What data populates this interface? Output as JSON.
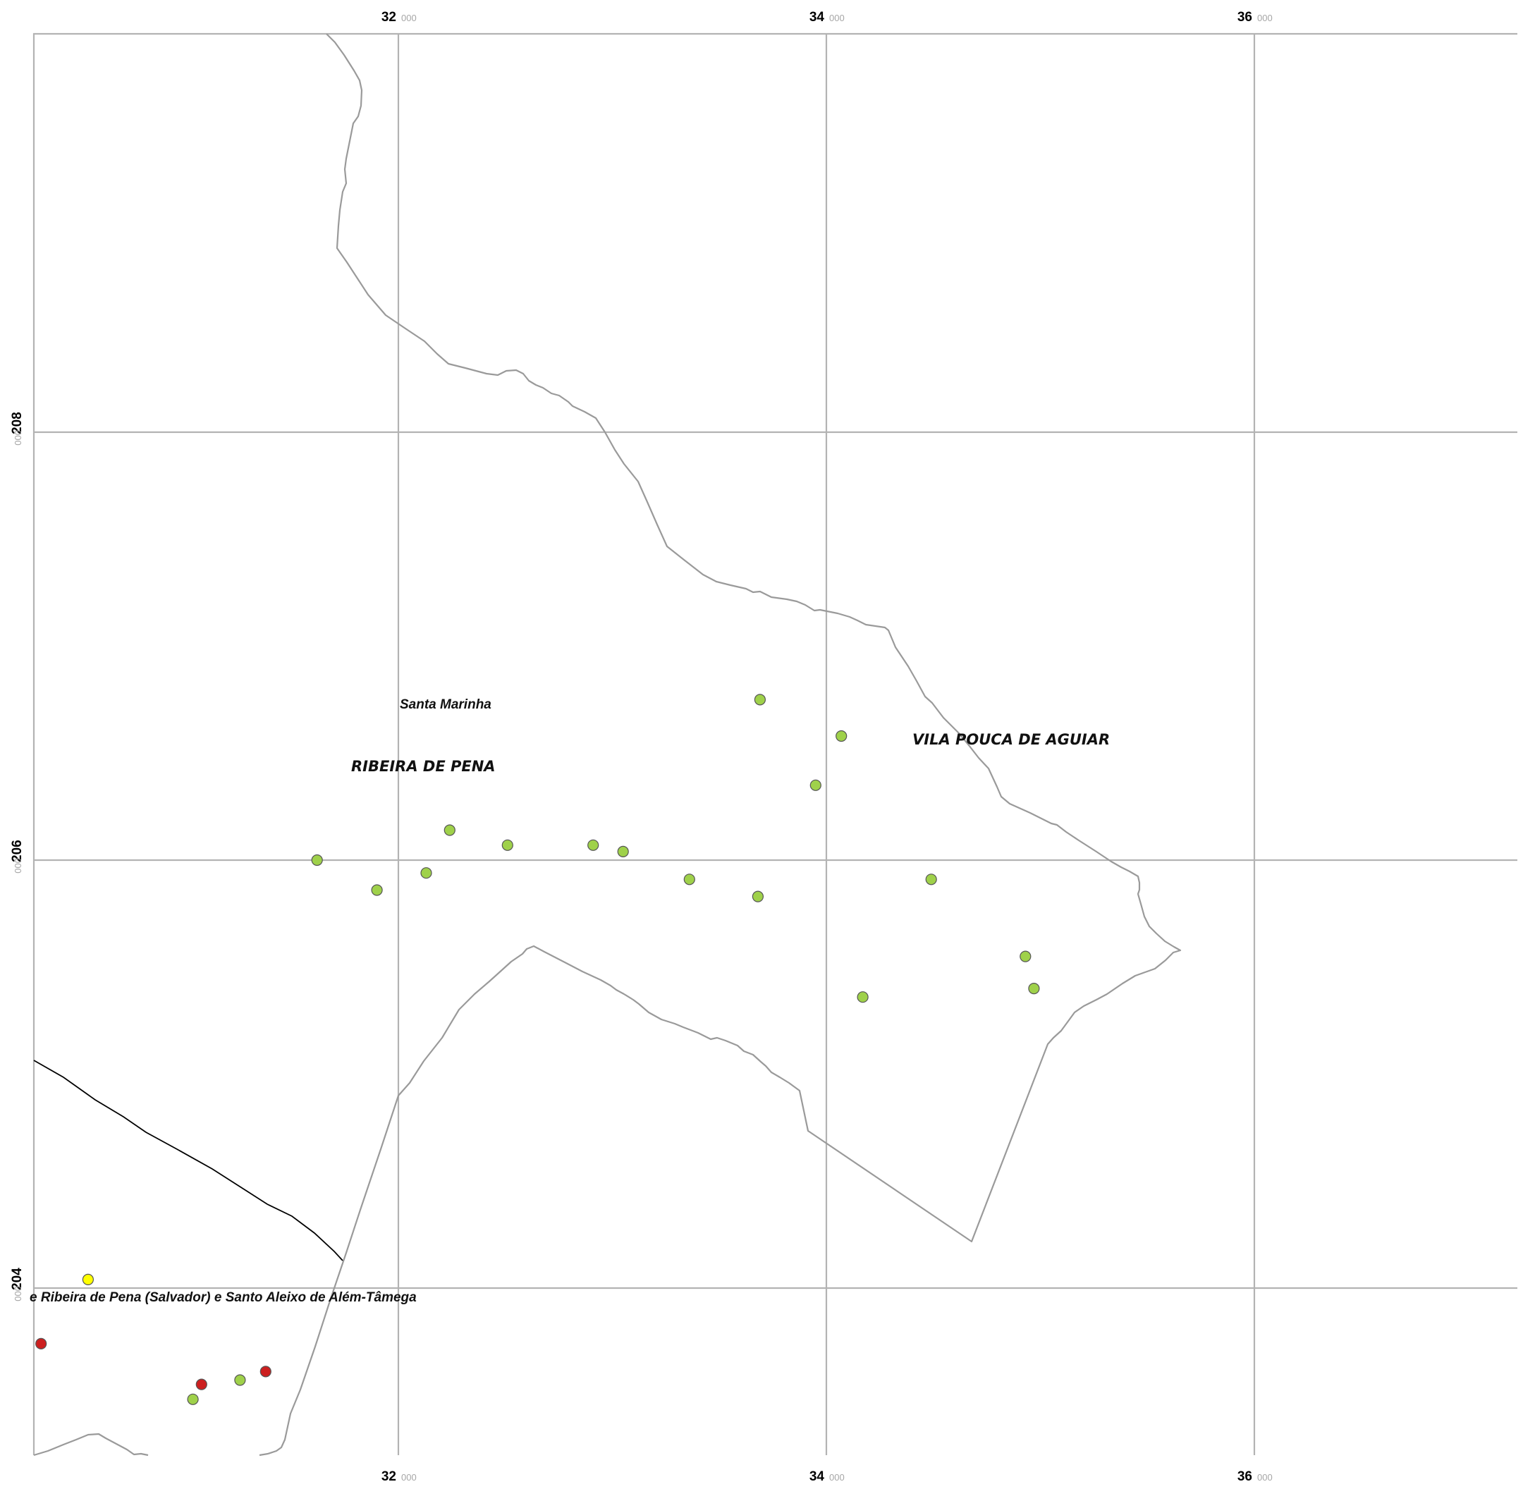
{
  "axes": {
    "x_ticks": [
      {
        "major": "32",
        "minor": "000"
      },
      {
        "major": "34",
        "minor": "000"
      },
      {
        "major": "36",
        "minor": "000"
      }
    ],
    "y_ticks": [
      {
        "major": "208",
        "minor": "000"
      },
      {
        "major": "206",
        "minor": "000"
      },
      {
        "major": "204",
        "minor": "000"
      }
    ]
  },
  "labels": {
    "santa_marinha": "Santa Marinha",
    "ribeira_de_pena": "RIBEIRA DE PENA",
    "vila_pouca_de_aguiar": "VILA POUCA DE AGUIAR",
    "union_parish": "e Ribeira de Pena (Salvador) e Santo Aleixo de Além-Tâmega"
  },
  "colors": {
    "green_point": "#9fd14a",
    "red_point": "#cc1f1f",
    "yellow_point": "#ffff00",
    "grid": "#b3b3b3",
    "border": "#9a9a9a"
  },
  "points": [
    {
      "x": 31.62,
      "y": 206.0,
      "status": "green"
    },
    {
      "x": 31.9,
      "y": 205.86,
      "status": "green"
    },
    {
      "x": 32.13,
      "y": 205.94,
      "status": "green"
    },
    {
      "x": 32.24,
      "y": 206.14,
      "status": "green"
    },
    {
      "x": 32.51,
      "y": 206.07,
      "status": "green"
    },
    {
      "x": 32.91,
      "y": 206.07,
      "status": "green"
    },
    {
      "x": 33.05,
      "y": 206.04,
      "status": "green"
    },
    {
      "x": 33.36,
      "y": 205.91,
      "status": "green"
    },
    {
      "x": 33.68,
      "y": 205.83,
      "status": "green"
    },
    {
      "x": 33.69,
      "y": 206.75,
      "status": "green"
    },
    {
      "x": 34.07,
      "y": 206.58,
      "status": "green"
    },
    {
      "x": 33.95,
      "y": 206.35,
      "status": "green"
    },
    {
      "x": 34.49,
      "y": 205.91,
      "status": "green"
    },
    {
      "x": 34.93,
      "y": 205.55,
      "status": "green"
    },
    {
      "x": 34.97,
      "y": 205.4,
      "status": "green"
    },
    {
      "x": 34.17,
      "y": 205.36,
      "status": "green"
    },
    {
      "x": 30.55,
      "y": 204.04,
      "status": "yellow"
    },
    {
      "x": 30.33,
      "y": 203.74,
      "status": "red"
    },
    {
      "x": 31.08,
      "y": 203.55,
      "status": "red"
    },
    {
      "x": 31.38,
      "y": 203.61,
      "status": "red"
    },
    {
      "x": 31.26,
      "y": 203.57,
      "status": "green"
    },
    {
      "x": 31.04,
      "y": 203.48,
      "status": "green"
    }
  ]
}
